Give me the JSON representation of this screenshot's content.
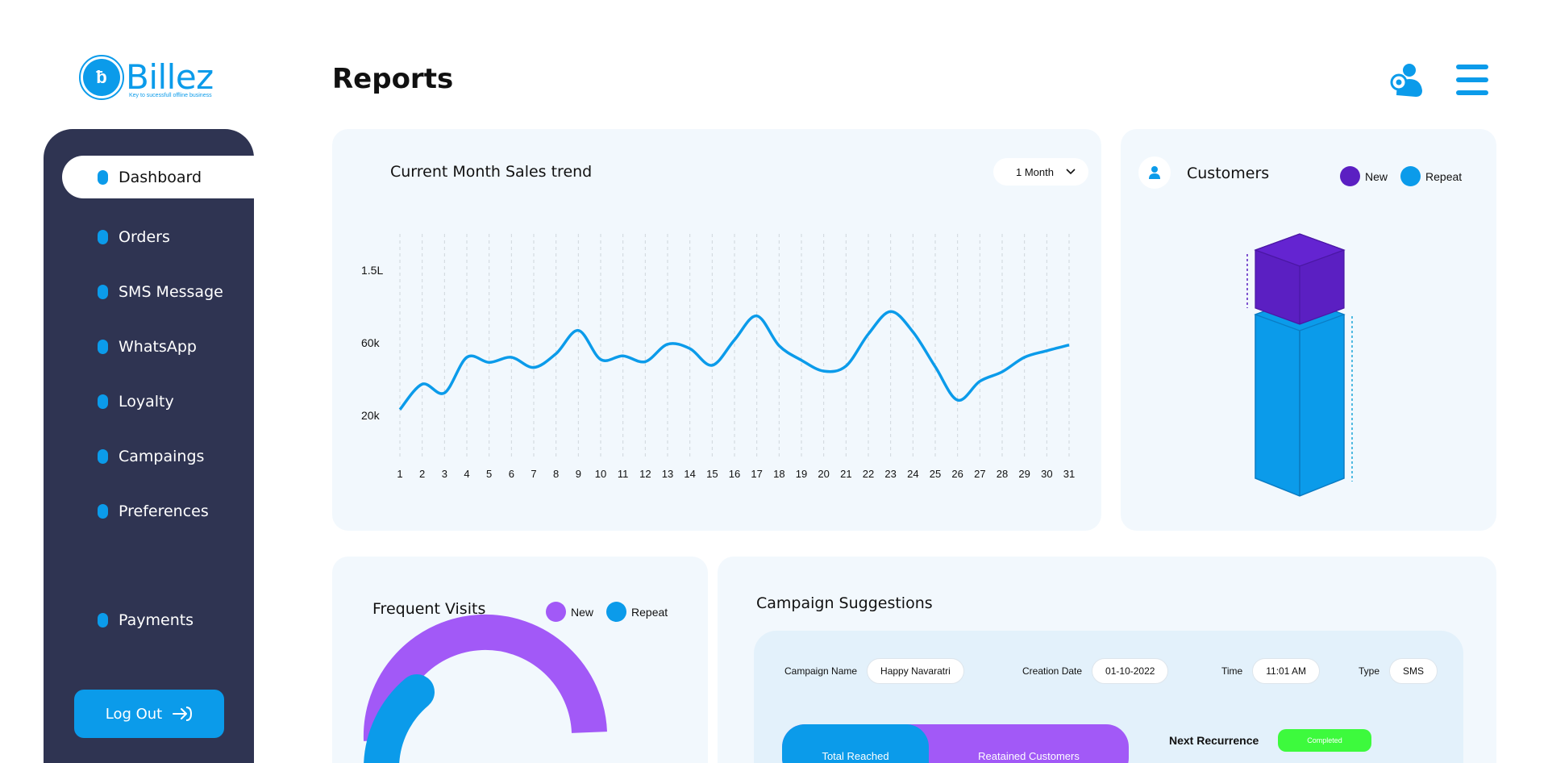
{
  "brand": {
    "name": "Billez",
    "tagline": "Key to sucessfull offline business",
    "accent": "#0b9bea"
  },
  "page": {
    "title": "Reports"
  },
  "icons": {
    "user": "user-settings-icon",
    "menu": "hamburger-menu-icon"
  },
  "sidebar": {
    "items": [
      {
        "label": "Dashboard",
        "active": true
      },
      {
        "label": "Orders"
      },
      {
        "label": "SMS Message"
      },
      {
        "label": "WhatsApp"
      },
      {
        "label": "Loyalty"
      },
      {
        "label": "Campaings"
      },
      {
        "label": "Preferences"
      },
      {
        "label": "Payments"
      }
    ],
    "logout_label": "Log Out"
  },
  "sales": {
    "title": "Current Month Sales trend",
    "range_label": "1 Month"
  },
  "customers": {
    "title": "Customers",
    "legend": [
      {
        "label": "New",
        "color": "#5b1fc2"
      },
      {
        "label": "Repeat",
        "color": "#0b9bea"
      }
    ]
  },
  "visits": {
    "title": "Frequent Visits",
    "legend": [
      {
        "label": "New",
        "color": "#a259f7"
      },
      {
        "label": "Repeat",
        "color": "#0b9bea"
      }
    ]
  },
  "campaign": {
    "title": "Campaign Suggestions",
    "fields": [
      {
        "label": "Campaign Name",
        "value": "Happy Navaratri"
      },
      {
        "label": "Creation Date",
        "value": "01-10-2022"
      },
      {
        "label": "Time",
        "value": "11:01 AM"
      },
      {
        "label": "Type",
        "value": "SMS"
      }
    ],
    "tabs": {
      "reached": "Total Reached",
      "retained": "Reatained Customers"
    },
    "next_recurrence_label": "Next Recurrence",
    "status": "Completed"
  },
  "chart_data": [
    {
      "type": "line",
      "title": "Current Month Sales trend",
      "x": [
        1,
        2,
        3,
        4,
        5,
        6,
        7,
        8,
        9,
        10,
        11,
        12,
        13,
        14,
        15,
        16,
        17,
        18,
        19,
        20,
        21,
        22,
        23,
        24,
        25,
        26,
        27,
        28,
        29,
        30,
        31
      ],
      "x_tick_labels": [
        "1",
        "2",
        "3",
        "4",
        "5",
        "6",
        "7",
        "8",
        "9",
        "10",
        "11",
        "12",
        "13",
        "14",
        "15",
        "16",
        "17",
        "18",
        "19",
        "20",
        "21",
        "22",
        "23",
        "24",
        "25",
        "26",
        "27",
        "28",
        "29",
        "30",
        "31"
      ],
      "y_tick_labels": [
        "20k",
        "60k",
        "1.5L"
      ],
      "series": [
        {
          "values": [
            0.08,
            0.43,
            0.31,
            0.8,
            0.73,
            0.8,
            0.66,
            0.85,
            1.17,
            0.77,
            0.82,
            0.74,
            0.98,
            0.92,
            0.69,
            1.04,
            1.37,
            0.96,
            0.76,
            0.61,
            0.68,
            1.12,
            1.43,
            1.15,
            0.67,
            0.21,
            0.47,
            0.6,
            0.8,
            0.89,
            0.97
          ],
          "color": "#0b9bea"
        }
      ],
      "value_note": "values in tick-index units: 0=20k, 1=60k, 2=1.5L",
      "grid": "vertical dashed"
    },
    {
      "type": "bar",
      "title": "Customers",
      "categories": [
        "Customers"
      ],
      "series": [
        {
          "name": "New",
          "values": [
            0.33
          ]
        },
        {
          "name": "Repeat",
          "values": [
            0.67
          ]
        }
      ],
      "stacked": true
    },
    {
      "type": "pie",
      "title": "Frequent Visits",
      "categories": [
        "New",
        "Repeat"
      ],
      "values": [
        0.86,
        0.14
      ],
      "donut": true
    }
  ]
}
